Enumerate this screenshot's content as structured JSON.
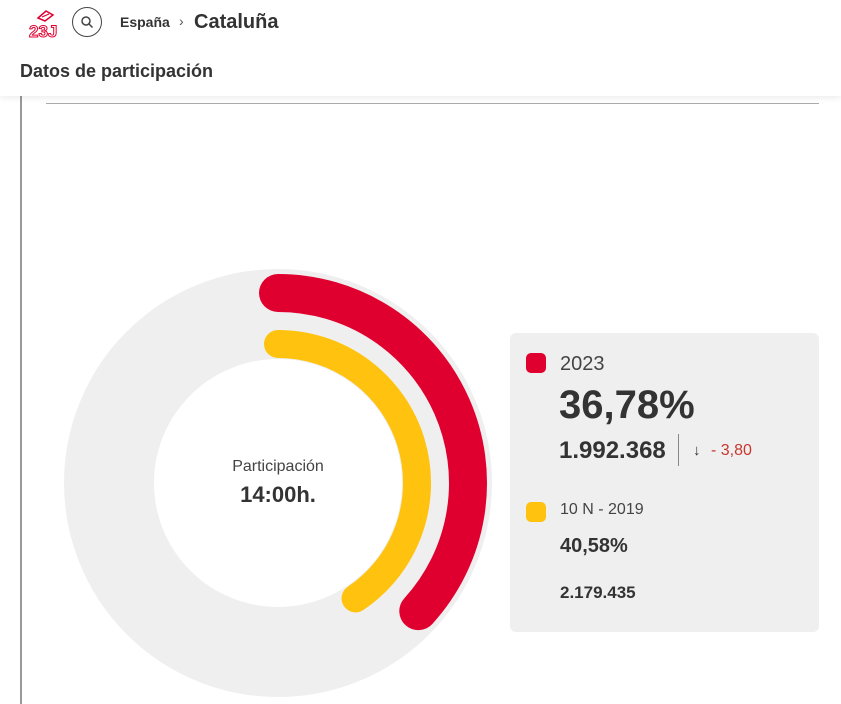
{
  "header": {
    "logo_text": "23J",
    "search_icon": "search-icon",
    "breadcrumb": {
      "parent": "España",
      "separator": "›",
      "current": "Cataluña"
    }
  },
  "section": {
    "title": "Datos de participación"
  },
  "chart": {
    "center_label": "Participación",
    "center_time": "14:00h."
  },
  "legend": {
    "current": {
      "label": "2023",
      "percent": "36,78%",
      "votes": "1.992.368",
      "arrow": "↓",
      "change": "- 3,80",
      "color": "#e0002f"
    },
    "previous": {
      "label": "10 N - 2019",
      "percent": "40,58%",
      "votes": "2.179.435",
      "color": "#ffc20e"
    }
  },
  "chart_data": {
    "type": "radial-bar",
    "title": "",
    "series": [
      {
        "name": "2023",
        "value": 36.78,
        "color": "#e0002f"
      },
      {
        "name": "10 N - 2019",
        "value": 40.58,
        "color": "#ffc20e"
      }
    ],
    "max": 100,
    "track_color": "#efefef"
  }
}
